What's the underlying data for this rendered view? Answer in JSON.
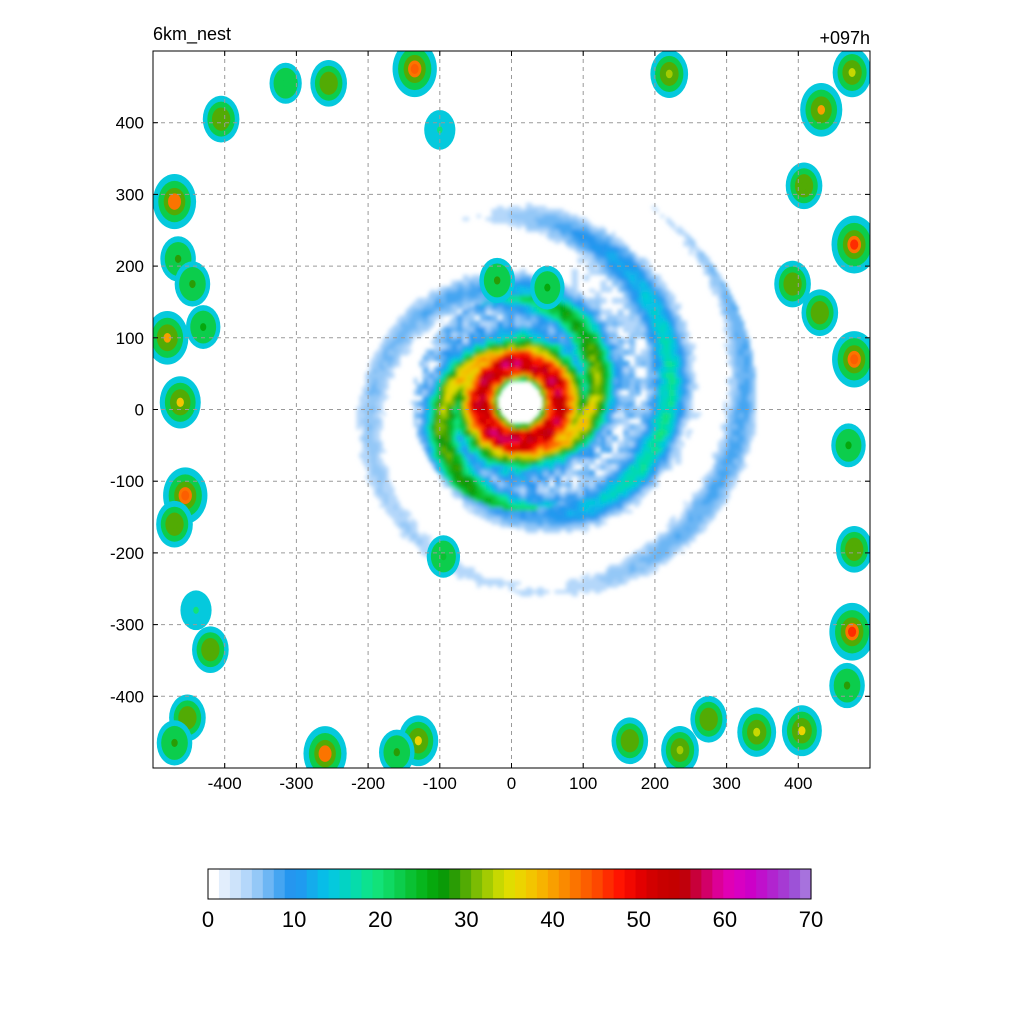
{
  "chart_data": {
    "type": "heatmap",
    "title_left": "6km_nest",
    "title_right": "+097h",
    "xlim": [
      -500,
      500
    ],
    "ylim": [
      -500,
      500
    ],
    "x_ticks": [
      -400,
      -300,
      -200,
      -100,
      0,
      100,
      200,
      300,
      400
    ],
    "y_ticks": [
      -400,
      -300,
      -200,
      -100,
      0,
      100,
      200,
      300,
      400
    ],
    "grid": true,
    "colorbar": {
      "range": [
        0,
        70
      ],
      "ticks": [
        0,
        10,
        20,
        30,
        40,
        50,
        60,
        70
      ],
      "colors": [
        "#ffffff",
        "#e2eefc",
        "#cde3fa",
        "#b4d7fa",
        "#94c8f7",
        "#6db6f4",
        "#45a5f1",
        "#2596ef",
        "#1f9bf0",
        "#14acec",
        "#08bde8",
        "#05c9dd",
        "#03d3c4",
        "#06dcab",
        "#0ce28f",
        "#12e279",
        "#0fd963",
        "#0ccd4c",
        "#0ac133",
        "#07b61d",
        "#06a80d",
        "#0a9a07",
        "#2a9c05",
        "#52ab04",
        "#7cbc03",
        "#a3cb02",
        "#c7d801",
        "#e0dd00",
        "#ecd400",
        "#f3c500",
        "#f7b300",
        "#f99f00",
        "#fa8a00",
        "#fb7400",
        "#fc5e00",
        "#fd4800",
        "#fe2c00",
        "#ff1400",
        "#f20800",
        "#e20000",
        "#d20000",
        "#c80000",
        "#c40000",
        "#c0000c",
        "#c8003a",
        "#d20068",
        "#dc0096",
        "#e000b4",
        "#d800c2",
        "#cc00c8",
        "#bf10cc",
        "#b124cf",
        "#a63ad3",
        "#9d52d7",
        "#a772dd"
      ]
    },
    "units": "",
    "features": {
      "eye": [
        10,
        8
      ],
      "max_value_region": "eyewall"
    }
  }
}
